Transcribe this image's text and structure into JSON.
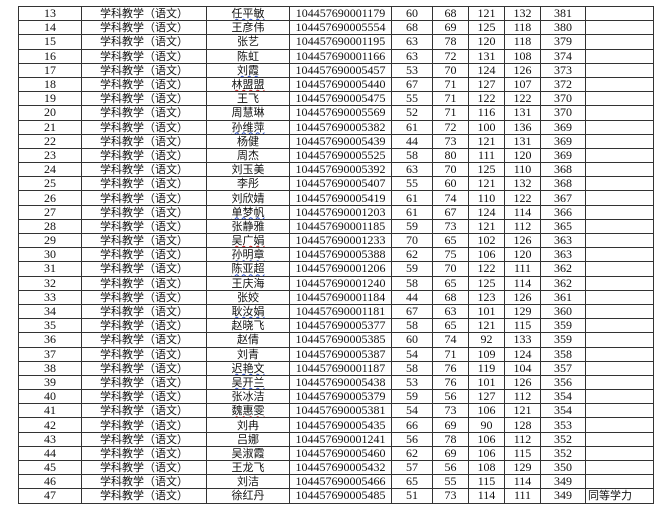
{
  "table": {
    "rows": [
      {
        "no": "13",
        "major": "学科教学（语文）",
        "name": "任平敏",
        "id": "104457690001179",
        "s1": "60",
        "s2": "68",
        "s3": "121",
        "s4": "132",
        "total": "381",
        "note": "",
        "mark": "blue"
      },
      {
        "no": "14",
        "major": "学科教学（语文）",
        "name": "王彦伟",
        "id": "104457690005554",
        "s1": "68",
        "s2": "69",
        "s3": "125",
        "s4": "118",
        "total": "380",
        "note": ""
      },
      {
        "no": "15",
        "major": "学科教学（语文）",
        "name": "张艺",
        "id": "104457690001195",
        "s1": "63",
        "s2": "78",
        "s3": "120",
        "s4": "118",
        "total": "379",
        "note": ""
      },
      {
        "no": "16",
        "major": "学科教学（语文）",
        "name": "陈虹",
        "id": "104457690001166",
        "s1": "63",
        "s2": "72",
        "s3": "131",
        "s4": "108",
        "total": "374",
        "note": ""
      },
      {
        "no": "17",
        "major": "学科教学（语文）",
        "name": "刘霞",
        "id": "104457690005457",
        "s1": "53",
        "s2": "70",
        "s3": "124",
        "s4": "126",
        "total": "373",
        "note": "",
        "mark": "blue"
      },
      {
        "no": "18",
        "major": "学科教学（语文）",
        "name": "林盟盟",
        "id": "104457690005440",
        "s1": "67",
        "s2": "71",
        "s3": "127",
        "s4": "107",
        "total": "372",
        "note": "",
        "mark": "red"
      },
      {
        "no": "19",
        "major": "学科教学（语文）",
        "name": "王飞",
        "id": "104457690005475",
        "s1": "55",
        "s2": "71",
        "s3": "122",
        "s4": "122",
        "total": "370",
        "note": ""
      },
      {
        "no": "20",
        "major": "学科教学（语文）",
        "name": "周慧琳",
        "id": "104457690005569",
        "s1": "52",
        "s2": "71",
        "s3": "116",
        "s4": "131",
        "total": "370",
        "note": ""
      },
      {
        "no": "21",
        "major": "学科教学（语文）",
        "name": "孙维萍",
        "id": "104457690005382",
        "s1": "61",
        "s2": "72",
        "s3": "100",
        "s4": "136",
        "total": "369",
        "note": "",
        "mark": "blue"
      },
      {
        "no": "22",
        "major": "学科教学（语文）",
        "name": "杨健",
        "id": "104457690005439",
        "s1": "44",
        "s2": "73",
        "s3": "121",
        "s4": "131",
        "total": "369",
        "note": ""
      },
      {
        "no": "23",
        "major": "学科教学（语文）",
        "name": "周杰",
        "id": "104457690005525",
        "s1": "58",
        "s2": "80",
        "s3": "111",
        "s4": "120",
        "total": "369",
        "note": ""
      },
      {
        "no": "24",
        "major": "学科教学（语文）",
        "name": "刘玉美",
        "id": "104457690005392",
        "s1": "63",
        "s2": "70",
        "s3": "125",
        "s4": "110",
        "total": "368",
        "note": ""
      },
      {
        "no": "25",
        "major": "学科教学（语文）",
        "name": "李彤",
        "id": "104457690005407",
        "s1": "55",
        "s2": "60",
        "s3": "121",
        "s4": "132",
        "total": "368",
        "note": ""
      },
      {
        "no": "26",
        "major": "学科教学（语文）",
        "name": "刘欣婧",
        "id": "104457690005419",
        "s1": "61",
        "s2": "74",
        "s3": "110",
        "s4": "122",
        "total": "367",
        "note": ""
      },
      {
        "no": "27",
        "major": "学科教学（语文）",
        "name": "单梦帆",
        "id": "104457690001203",
        "s1": "61",
        "s2": "67",
        "s3": "124",
        "s4": "114",
        "total": "366",
        "note": "",
        "mark": "blue"
      },
      {
        "no": "28",
        "major": "学科教学（语文）",
        "name": "张静雅",
        "id": "104457690001185",
        "s1": "59",
        "s2": "73",
        "s3": "121",
        "s4": "112",
        "total": "365",
        "note": ""
      },
      {
        "no": "29",
        "major": "学科教学（语文）",
        "name": "吴广娟",
        "id": "104457690001233",
        "s1": "70",
        "s2": "65",
        "s3": "102",
        "s4": "126",
        "total": "363",
        "note": "",
        "mark": "red"
      },
      {
        "no": "30",
        "major": "学科教学（语文）",
        "name": "孙明章",
        "id": "104457690005388",
        "s1": "62",
        "s2": "75",
        "s3": "106",
        "s4": "120",
        "total": "363",
        "note": "",
        "mark": "blue"
      },
      {
        "no": "31",
        "major": "学科教学（语文）",
        "name": "陈亚超",
        "id": "104457690001206",
        "s1": "59",
        "s2": "70",
        "s3": "122",
        "s4": "111",
        "total": "362",
        "note": "",
        "mark": "blue"
      },
      {
        "no": "32",
        "major": "学科教学（语文）",
        "name": "王庆海",
        "id": "104457690001240",
        "s1": "58",
        "s2": "65",
        "s3": "125",
        "s4": "114",
        "total": "362",
        "note": ""
      },
      {
        "no": "33",
        "major": "学科教学（语文）",
        "name": "张姣",
        "id": "104457690001184",
        "s1": "44",
        "s2": "68",
        "s3": "123",
        "s4": "126",
        "total": "361",
        "note": ""
      },
      {
        "no": "34",
        "major": "学科教学（语文）",
        "name": "耿汝娟",
        "id": "104457690001181",
        "s1": "67",
        "s2": "63",
        "s3": "101",
        "s4": "129",
        "total": "360",
        "note": "",
        "mark": "blue"
      },
      {
        "no": "35",
        "major": "学科教学（语文）",
        "name": "赵晓飞",
        "id": "104457690005377",
        "s1": "58",
        "s2": "65",
        "s3": "121",
        "s4": "115",
        "total": "359",
        "note": ""
      },
      {
        "no": "36",
        "major": "学科教学（语文）",
        "name": "赵倩",
        "id": "104457690005385",
        "s1": "60",
        "s2": "74",
        "s3": "92",
        "s4": "133",
        "total": "359",
        "note": ""
      },
      {
        "no": "37",
        "major": "学科教学（语文）",
        "name": "刘青",
        "id": "104457690005387",
        "s1": "54",
        "s2": "71",
        "s3": "109",
        "s4": "124",
        "total": "358",
        "note": ""
      },
      {
        "no": "38",
        "major": "学科教学（语文）",
        "name": "迟艳文",
        "id": "104457690001187",
        "s1": "58",
        "s2": "76",
        "s3": "119",
        "s4": "104",
        "total": "357",
        "note": "",
        "mark": "blue"
      },
      {
        "no": "39",
        "major": "学科教学（语文）",
        "name": "吴开兰",
        "id": "104457690005438",
        "s1": "53",
        "s2": "76",
        "s3": "101",
        "s4": "126",
        "total": "356",
        "note": "",
        "mark": "blue"
      },
      {
        "no": "40",
        "major": "学科教学（语文）",
        "name": "张冰洁",
        "id": "104457690005379",
        "s1": "59",
        "s2": "56",
        "s3": "127",
        "s4": "112",
        "total": "354",
        "note": ""
      },
      {
        "no": "41",
        "major": "学科教学（语文）",
        "name": "魏惠雯",
        "id": "104457690005381",
        "s1": "54",
        "s2": "73",
        "s3": "106",
        "s4": "121",
        "total": "354",
        "note": "",
        "mark": "red"
      },
      {
        "no": "42",
        "major": "学科教学（语文）",
        "name": "刘冉",
        "id": "104457690005435",
        "s1": "66",
        "s2": "69",
        "s3": "90",
        "s4": "128",
        "total": "353",
        "note": ""
      },
      {
        "no": "43",
        "major": "学科教学（语文）",
        "name": "吕娜",
        "id": "104457690001241",
        "s1": "56",
        "s2": "78",
        "s3": "106",
        "s4": "112",
        "total": "352",
        "note": ""
      },
      {
        "no": "44",
        "major": "学科教学（语文）",
        "name": "吴淑霞",
        "id": "104457690005460",
        "s1": "62",
        "s2": "69",
        "s3": "106",
        "s4": "115",
        "total": "352",
        "note": ""
      },
      {
        "no": "45",
        "major": "学科教学（语文）",
        "name": "王龙飞",
        "id": "104457690005432",
        "s1": "57",
        "s2": "56",
        "s3": "108",
        "s4": "129",
        "total": "350",
        "note": ""
      },
      {
        "no": "46",
        "major": "学科教学（语文）",
        "name": "刘洁",
        "id": "104457690005466",
        "s1": "65",
        "s2": "55",
        "s3": "115",
        "s4": "114",
        "total": "349",
        "note": ""
      },
      {
        "no": "47",
        "major": "学科教学（语文）",
        "name": "徐红丹",
        "id": "104457690005485",
        "s1": "51",
        "s2": "73",
        "s3": "114",
        "s4": "111",
        "total": "349",
        "note": "同等学力"
      }
    ]
  }
}
